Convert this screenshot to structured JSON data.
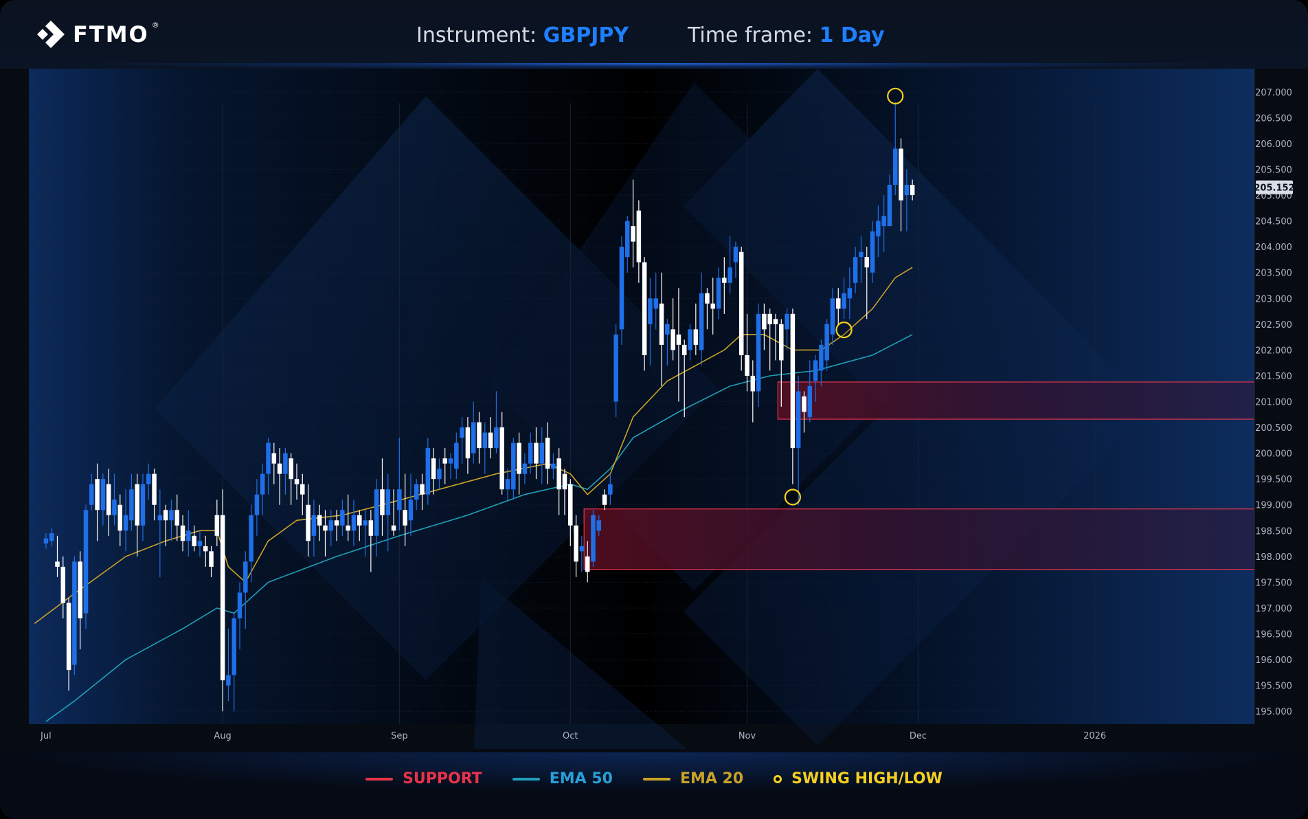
{
  "header": {
    "logo_text": "FTMO",
    "logo_reg": "®",
    "instrument_label": "Instrument:",
    "instrument_value": "GBPJPY",
    "timeframe_label": "Time frame:",
    "timeframe_value": "1 Day"
  },
  "legend": {
    "support": "SUPPORT",
    "ema50": "EMA 50",
    "ema20": "EMA 20",
    "swing": "SWING HIGH/LOW"
  },
  "colors": {
    "bull": "#1e6fe8",
    "bear": "#ffffff",
    "support": "#e8334a",
    "ema50": "#1fa0b8",
    "ema20": "#c9a227",
    "swing": "#f5d020",
    "accent": "#1e7fff"
  },
  "chart_data": {
    "type": "candlestick",
    "instrument": "GBPJPY",
    "timeframe": "1 Day",
    "ylim": [
      194.75,
      207.45
    ],
    "y_ticks": [
      "207.000",
      "206.500",
      "206.000",
      "205.500",
      "205.000",
      "204.500",
      "204.000",
      "203.500",
      "203.000",
      "202.500",
      "202.000",
      "201.500",
      "201.000",
      "200.500",
      "200.000",
      "199.500",
      "199.000",
      "198.500",
      "198.000",
      "197.500",
      "197.000",
      "196.500",
      "196.000",
      "195.500",
      "195.000"
    ],
    "y_tick_values": [
      207.0,
      206.5,
      206.0,
      205.5,
      205.0,
      204.5,
      204.0,
      203.5,
      203.0,
      202.5,
      202.0,
      201.5,
      201.0,
      200.5,
      200.0,
      199.5,
      199.0,
      198.5,
      198.0,
      197.5,
      197.0,
      196.5,
      196.0,
      195.5,
      195.0
    ],
    "current_price": "205.152",
    "current_price_value": 205.152,
    "x_ticks": [
      "Jul",
      "Aug",
      "Sep",
      "Oct",
      "Nov",
      "Dec",
      "2026"
    ],
    "x_tick_days": [
      1,
      32,
      63,
      93,
      124,
      154,
      185
    ],
    "xlim_days": [
      -2,
      213
    ],
    "candles": [
      [
        1,
        198.25,
        198.35,
        198.15,
        198.45
      ],
      [
        2,
        198.3,
        198.45,
        198.2,
        198.55
      ],
      [
        3,
        197.9,
        197.8,
        197.6,
        198.4
      ],
      [
        4,
        197.8,
        197.1,
        196.8,
        198.0
      ],
      [
        5,
        197.1,
        195.8,
        195.4,
        197.2
      ],
      [
        6,
        195.9,
        197.9,
        195.7,
        198.0
      ],
      [
        7,
        197.9,
        196.8,
        196.2,
        198.1
      ],
      [
        8,
        196.9,
        198.9,
        196.6,
        199.0
      ],
      [
        9,
        199.0,
        199.4,
        198.9,
        199.6
      ],
      [
        10,
        199.5,
        198.9,
        198.3,
        199.8
      ],
      [
        11,
        198.9,
        199.5,
        198.6,
        199.6
      ],
      [
        12,
        199.4,
        198.8,
        198.4,
        199.7
      ],
      [
        13,
        198.8,
        199.1,
        198.6,
        199.6
      ],
      [
        14,
        199.0,
        198.5,
        198.2,
        199.2
      ],
      [
        15,
        198.5,
        198.8,
        198.1,
        199.3
      ],
      [
        16,
        198.7,
        199.3,
        198.5,
        199.6
      ],
      [
        17,
        199.4,
        198.6,
        198.0,
        199.6
      ],
      [
        18,
        198.6,
        199.4,
        198.3,
        199.6
      ],
      [
        19,
        199.4,
        199.6,
        199.1,
        199.8
      ],
      [
        20,
        199.6,
        199.0,
        198.7,
        199.7
      ],
      [
        21,
        198.7,
        198.8,
        197.6,
        199.3
      ],
      [
        22,
        198.9,
        198.7,
        198.2,
        199.0
      ],
      [
        23,
        198.7,
        198.9,
        198.3,
        199.1
      ],
      [
        24,
        198.9,
        198.6,
        198.3,
        199.2
      ],
      [
        25,
        198.6,
        198.3,
        198.1,
        198.8
      ],
      [
        26,
        198.3,
        198.5,
        198.0,
        198.9
      ],
      [
        27,
        198.4,
        198.2,
        198.1,
        198.6
      ],
      [
        28,
        198.2,
        198.3,
        198.0,
        198.5
      ],
      [
        29,
        198.2,
        198.1,
        197.8,
        198.4
      ],
      [
        30,
        198.1,
        197.8,
        197.6,
        198.2
      ],
      [
        31,
        198.8,
        198.4,
        198.2,
        199.1
      ],
      [
        32,
        198.8,
        195.6,
        195.0,
        199.3
      ],
      [
        33,
        195.5,
        195.7,
        195.2,
        196.6
      ],
      [
        34,
        195.7,
        196.8,
        195.0,
        196.9
      ],
      [
        35,
        196.8,
        197.3,
        196.2,
        197.5
      ],
      [
        36,
        197.3,
        197.9,
        196.6,
        198.1
      ],
      [
        37,
        197.9,
        198.8,
        197.5,
        199.0
      ],
      [
        38,
        198.8,
        199.2,
        198.4,
        199.5
      ],
      [
        39,
        199.2,
        199.6,
        198.8,
        199.8
      ],
      [
        40,
        199.6,
        200.2,
        199.2,
        200.3
      ],
      [
        41,
        200.0,
        199.8,
        199.4,
        200.2
      ],
      [
        42,
        199.8,
        199.6,
        199.0,
        200.1
      ],
      [
        43,
        199.6,
        200.0,
        199.2,
        200.1
      ],
      [
        44,
        199.9,
        199.5,
        199.0,
        200.0
      ],
      [
        45,
        199.5,
        199.4,
        199.1,
        199.8
      ],
      [
        46,
        199.4,
        199.2,
        198.8,
        199.6
      ],
      [
        47,
        199.0,
        198.3,
        198.0,
        199.4
      ],
      [
        48,
        198.4,
        198.8,
        198.0,
        199.1
      ],
      [
        49,
        198.8,
        198.6,
        198.3,
        199.0
      ],
      [
        50,
        198.6,
        198.5,
        198.0,
        198.9
      ],
      [
        51,
        198.5,
        198.7,
        198.2,
        198.9
      ],
      [
        52,
        198.7,
        198.6,
        198.3,
        198.9
      ],
      [
        53,
        198.6,
        198.9,
        198.4,
        199.1
      ],
      [
        54,
        198.6,
        198.5,
        198.3,
        199.2
      ],
      [
        55,
        198.5,
        198.8,
        198.2,
        199.1
      ],
      [
        56,
        198.8,
        198.6,
        198.3,
        198.9
      ],
      [
        57,
        198.6,
        198.7,
        198.0,
        198.9
      ],
      [
        58,
        198.7,
        198.4,
        197.7,
        198.9
      ],
      [
        59,
        198.4,
        199.3,
        198.0,
        199.5
      ],
      [
        60,
        199.3,
        198.8,
        198.4,
        199.9
      ],
      [
        61,
        198.8,
        199.3,
        198.1,
        199.6
      ],
      [
        62,
        198.6,
        198.5,
        198.4,
        199.3
      ],
      [
        63,
        198.9,
        199.3,
        198.5,
        200.3
      ],
      [
        64,
        198.9,
        198.6,
        198.2,
        199.6
      ],
      [
        65,
        198.7,
        199.1,
        198.4,
        199.6
      ],
      [
        66,
        199.1,
        199.4,
        198.9,
        199.5
      ],
      [
        67,
        199.4,
        199.2,
        198.9,
        199.6
      ],
      [
        68,
        199.2,
        200.1,
        199.0,
        200.3
      ],
      [
        69,
        199.9,
        199.5,
        199.2,
        200.1
      ],
      [
        70,
        199.5,
        199.7,
        199.3,
        199.9
      ],
      [
        71,
        199.9,
        199.8,
        199.4,
        200.1
      ],
      [
        72,
        199.8,
        199.9,
        199.5,
        200.0
      ],
      [
        73,
        199.7,
        200.2,
        199.5,
        200.4
      ],
      [
        74,
        200.3,
        200.5,
        199.8,
        200.7
      ],
      [
        75,
        200.5,
        199.9,
        199.6,
        200.7
      ],
      [
        76,
        200.0,
        200.6,
        199.8,
        201.0
      ],
      [
        77,
        200.6,
        200.1,
        199.8,
        200.8
      ],
      [
        78,
        200.1,
        200.4,
        199.6,
        200.6
      ],
      [
        79,
        200.4,
        200.1,
        199.9,
        200.7
      ],
      [
        80,
        200.1,
        200.5,
        200.0,
        201.2
      ],
      [
        81,
        200.5,
        199.3,
        199.2,
        200.8
      ],
      [
        82,
        199.3,
        199.5,
        199.1,
        199.7
      ],
      [
        83,
        199.3,
        200.2,
        199.1,
        200.3
      ],
      [
        84,
        200.2,
        199.6,
        199.2,
        200.4
      ],
      [
        85,
        199.6,
        199.8,
        199.4,
        200.0
      ],
      [
        86,
        199.8,
        200.2,
        199.6,
        200.4
      ],
      [
        87,
        200.2,
        199.8,
        199.5,
        200.5
      ],
      [
        88,
        199.8,
        200.2,
        199.4,
        200.5
      ],
      [
        89,
        200.3,
        199.7,
        199.4,
        200.6
      ],
      [
        90,
        199.7,
        199.8,
        199.5,
        200.0
      ],
      [
        91,
        199.9,
        199.3,
        198.8,
        200.1
      ],
      [
        92,
        199.6,
        199.3,
        198.8,
        199.7
      ],
      [
        93,
        199.4,
        198.6,
        198.2,
        199.5
      ],
      [
        94,
        198.6,
        197.9,
        197.6,
        198.8
      ],
      [
        95,
        198.1,
        198.2,
        197.7,
        198.4
      ],
      [
        96,
        198.0,
        197.7,
        197.5,
        198.3
      ],
      [
        97,
        197.9,
        198.8,
        197.8,
        198.9
      ],
      [
        98,
        198.5,
        198.7,
        198.4,
        198.8
      ],
      [
        99,
        199.2,
        199.0,
        198.9,
        199.3
      ],
      [
        100,
        199.2,
        199.4,
        199.0,
        199.6
      ],
      [
        101,
        201.0,
        202.3,
        200.7,
        202.5
      ],
      [
        102,
        202.4,
        204.0,
        202.1,
        204.2
      ],
      [
        103,
        203.8,
        204.5,
        203.5,
        204.6
      ],
      [
        104,
        204.4,
        204.1,
        203.6,
        205.3
      ],
      [
        105,
        204.7,
        203.7,
        203.3,
        204.9
      ],
      [
        106,
        203.7,
        201.9,
        201.6,
        203.8
      ],
      [
        107,
        202.5,
        203.0,
        201.7,
        203.4
      ],
      [
        108,
        202.8,
        203.0,
        202.4,
        203.5
      ],
      [
        109,
        202.9,
        202.1,
        201.3,
        203.5
      ],
      [
        110,
        202.3,
        202.5,
        201.7,
        202.6
      ],
      [
        111,
        202.4,
        202.0,
        201.8,
        203.0
      ],
      [
        112,
        202.3,
        202.1,
        201.0,
        203.2
      ],
      [
        113,
        202.1,
        201.9,
        200.7,
        202.2
      ],
      [
        114,
        202.0,
        202.4,
        201.8,
        202.5
      ],
      [
        115,
        202.4,
        202.1,
        201.9,
        202.9
      ],
      [
        116,
        202.0,
        203.1,
        201.7,
        203.5
      ],
      [
        117,
        203.1,
        202.9,
        202.4,
        203.2
      ],
      [
        118,
        202.9,
        202.8,
        202.3,
        203.4
      ],
      [
        119,
        202.8,
        203.4,
        202.6,
        203.6
      ],
      [
        120,
        203.4,
        203.3,
        202.7,
        203.8
      ],
      [
        121,
        203.3,
        203.6,
        203.1,
        204.2
      ],
      [
        122,
        203.7,
        204.0,
        203.4,
        204.1
      ],
      [
        123,
        203.9,
        201.9,
        201.6,
        204.0
      ],
      [
        124,
        201.9,
        201.5,
        201.2,
        202.7
      ],
      [
        125,
        201.5,
        201.2,
        200.6,
        201.8
      ],
      [
        126,
        201.2,
        202.7,
        200.9,
        202.9
      ],
      [
        127,
        202.7,
        202.4,
        202.0,
        202.9
      ],
      [
        128,
        202.7,
        202.5,
        201.6,
        202.8
      ],
      [
        129,
        202.6,
        202.5,
        201.8,
        202.7
      ],
      [
        130,
        202.5,
        201.8,
        200.9,
        202.6
      ],
      [
        131,
        202.4,
        202.7,
        202.0,
        202.8
      ],
      [
        132,
        202.7,
        200.1,
        199.4,
        202.8
      ],
      [
        133,
        200.1,
        201.2,
        199.0,
        201.5
      ],
      [
        134,
        201.1,
        200.8,
        200.4,
        201.2
      ],
      [
        135,
        200.7,
        201.3,
        200.6,
        201.8
      ],
      [
        136,
        201.4,
        201.8,
        201.0,
        201.9
      ],
      [
        137,
        201.6,
        202.1,
        201.3,
        202.2
      ],
      [
        138,
        201.8,
        202.5,
        201.6,
        202.6
      ],
      [
        139,
        202.3,
        203.0,
        202.1,
        203.2
      ],
      [
        140,
        203.0,
        202.8,
        202.5,
        203.2
      ],
      [
        141,
        202.8,
        203.1,
        202.6,
        203.4
      ],
      [
        142,
        203.0,
        203.2,
        202.6,
        203.6
      ],
      [
        143,
        203.3,
        203.8,
        203.1,
        204.0
      ],
      [
        144,
        203.8,
        203.9,
        203.3,
        204.2
      ],
      [
        145,
        203.8,
        203.6,
        202.6,
        204.0
      ],
      [
        146,
        203.5,
        204.3,
        203.3,
        204.5
      ],
      [
        147,
        204.2,
        204.5,
        203.8,
        204.8
      ],
      [
        148,
        204.4,
        204.6,
        203.9,
        205.0
      ],
      [
        149,
        204.4,
        205.2,
        204.4,
        205.4
      ],
      [
        150,
        205.2,
        205.9,
        205.0,
        206.8
      ],
      [
        151,
        205.9,
        204.9,
        204.3,
        206.1
      ],
      [
        152,
        205.0,
        205.2,
        204.3,
        205.5
      ],
      [
        153,
        205.2,
        205.0,
        204.9,
        205.3
      ]
    ],
    "ema20": [
      [
        -1,
        196.7
      ],
      [
        5,
        197.2
      ],
      [
        15,
        198.0
      ],
      [
        22,
        198.3
      ],
      [
        28,
        198.5
      ],
      [
        31,
        198.5
      ],
      [
        33,
        197.8
      ],
      [
        36,
        197.5
      ],
      [
        40,
        198.3
      ],
      [
        45,
        198.7
      ],
      [
        53,
        198.8
      ],
      [
        60,
        199.0
      ],
      [
        70,
        199.3
      ],
      [
        80,
        199.6
      ],
      [
        89,
        199.8
      ],
      [
        93,
        199.6
      ],
      [
        96,
        199.2
      ],
      [
        100,
        199.6
      ],
      [
        104,
        200.7
      ],
      [
        110,
        201.4
      ],
      [
        120,
        202.0
      ],
      [
        123,
        202.3
      ],
      [
        127,
        202.3
      ],
      [
        132,
        202.0
      ],
      [
        137,
        202.0
      ],
      [
        141,
        202.3
      ],
      [
        146,
        202.8
      ],
      [
        150,
        203.4
      ],
      [
        153,
        203.6
      ]
    ],
    "ema50": [
      [
        1,
        194.8
      ],
      [
        6,
        195.2
      ],
      [
        15,
        196.0
      ],
      [
        25,
        196.6
      ],
      [
        31,
        197.0
      ],
      [
        34,
        196.9
      ],
      [
        40,
        197.5
      ],
      [
        52,
        198.0
      ],
      [
        63,
        198.4
      ],
      [
        75,
        198.8
      ],
      [
        85,
        199.2
      ],
      [
        93,
        199.4
      ],
      [
        96,
        199.3
      ],
      [
        100,
        199.7
      ],
      [
        104,
        200.3
      ],
      [
        112,
        200.8
      ],
      [
        121,
        201.3
      ],
      [
        128,
        201.5
      ],
      [
        136,
        201.6
      ],
      [
        146,
        201.9
      ],
      [
        153,
        202.3
      ]
    ],
    "swing_points": [
      {
        "day": 150,
        "price": 206.92,
        "label": "swing-high"
      },
      {
        "day": 141,
        "price": 202.39,
        "label": "swing-low"
      },
      {
        "day": 132,
        "price": 199.15,
        "label": "swing-low"
      }
    ],
    "support_zones": [
      {
        "from_day": 96,
        "y_low": 197.75,
        "y_high": 198.92
      },
      {
        "from_day": 130,
        "y_low": 200.66,
        "y_high": 201.38
      }
    ]
  }
}
